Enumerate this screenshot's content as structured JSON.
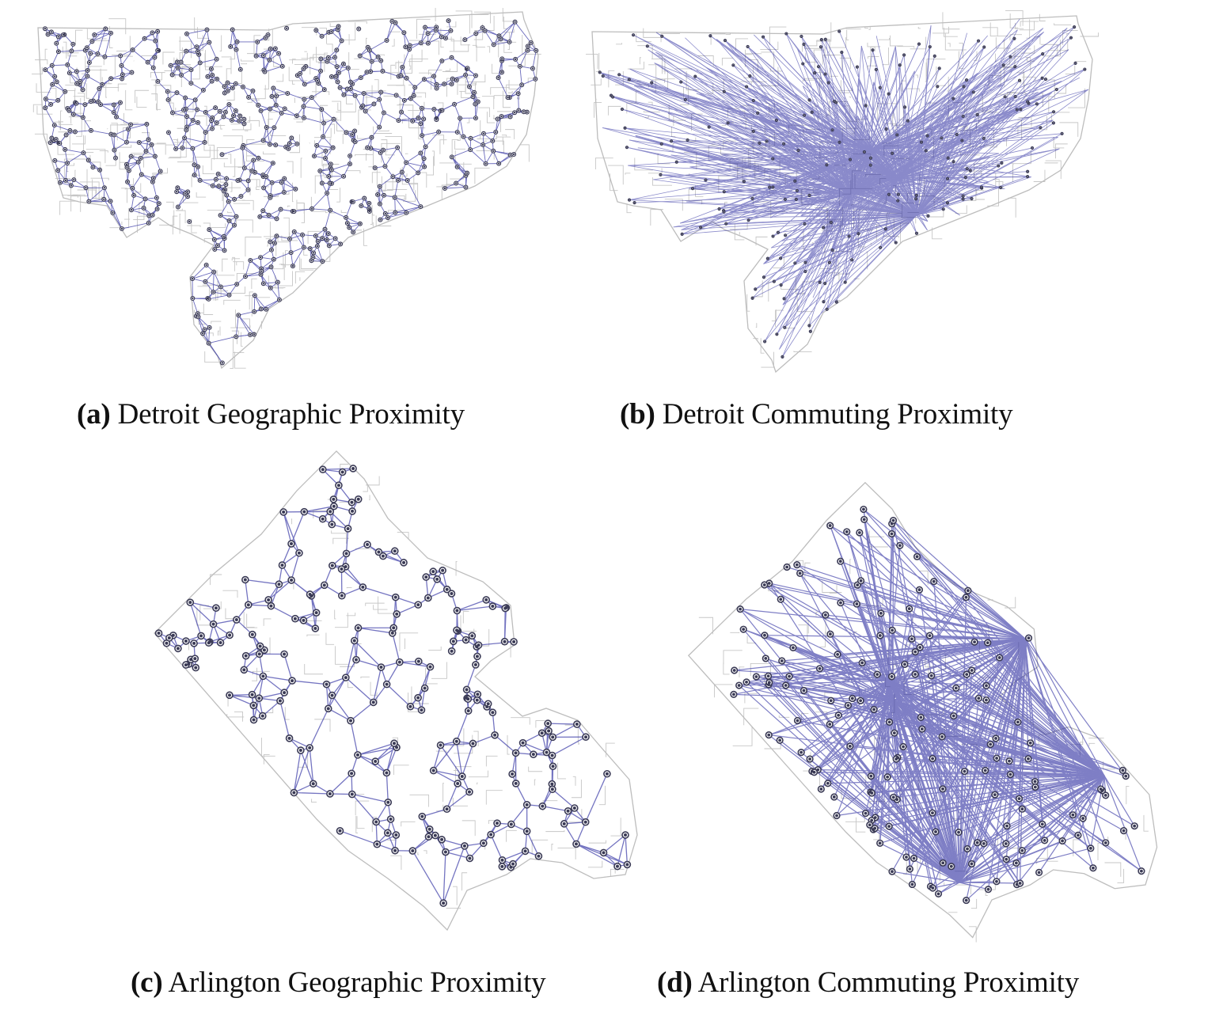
{
  "figure": {
    "panels": [
      {
        "tag": "(a)",
        "title": "Detroit Geographic Proximity",
        "city": "Detroit",
        "network": "geographic"
      },
      {
        "tag": "(b)",
        "title": "Detroit Commuting Proximity",
        "city": "Detroit",
        "network": "commuting"
      },
      {
        "tag": "(c)",
        "title": "Arlington Geographic Proximity",
        "city": "Arlington",
        "network": "geographic"
      },
      {
        "tag": "(d)",
        "title": "Arlington Commuting Proximity",
        "city": "Arlington",
        "network": "commuting"
      }
    ],
    "colors": {
      "edge": "#2b2ba0",
      "node_fill": "#3a3a55",
      "boundary": "#bdbdbd",
      "background": "#ffffff"
    }
  }
}
